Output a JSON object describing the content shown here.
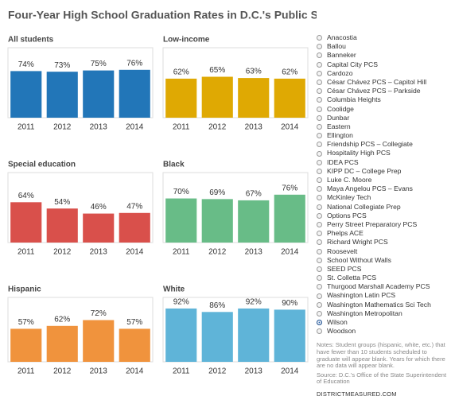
{
  "header": {
    "title": "Four-Year High School Graduation Rates in D.C.'s Public Schools, By School"
  },
  "chart_data": [
    {
      "type": "bar",
      "title": "All students",
      "categories": [
        "2011",
        "2012",
        "2013",
        "2014"
      ],
      "values": [
        74,
        73,
        75,
        76
      ],
      "value_labels": [
        "74%",
        "73%",
        "75%",
        "76%"
      ],
      "color": "#2276b8"
    },
    {
      "type": "bar",
      "title": "Low-income",
      "categories": [
        "2011",
        "2012",
        "2013",
        "2014"
      ],
      "values": [
        62,
        65,
        63,
        62
      ],
      "value_labels": [
        "62%",
        "65%",
        "63%",
        "62%"
      ],
      "color": "#dfa903"
    },
    {
      "type": "bar",
      "title": "Special education",
      "categories": [
        "2011",
        "2012",
        "2013",
        "2014"
      ],
      "values": [
        64,
        54,
        46,
        47
      ],
      "value_labels": [
        "64%",
        "54%",
        "46%",
        "47%"
      ],
      "color": "#d9504b"
    },
    {
      "type": "bar",
      "title": "Black",
      "categories": [
        "2011",
        "2012",
        "2013",
        "2014"
      ],
      "values": [
        70,
        69,
        67,
        76
      ],
      "value_labels": [
        "70%",
        "69%",
        "67%",
        "76%"
      ],
      "color": "#68bc87"
    },
    {
      "type": "bar",
      "title": "Hispanic",
      "categories": [
        "2011",
        "2012",
        "2013",
        "2014"
      ],
      "values": [
        57,
        62,
        72,
        57
      ],
      "value_labels": [
        "57%",
        "62%",
        "72%",
        "57%"
      ],
      "color": "#f0933d"
    },
    {
      "type": "bar",
      "title": "White",
      "categories": [
        "2011",
        "2012",
        "2013",
        "2014"
      ],
      "values": [
        92,
        86,
        92,
        90
      ],
      "value_labels": [
        "92%",
        "86%",
        "92%",
        "90%"
      ],
      "color": "#5fb4d8"
    }
  ],
  "school_selector": {
    "options": [
      "Anacostia",
      "Ballou",
      "Banneker",
      "Capital City PCS",
      "Cardozo",
      "César Chávez PCS – Capitol Hill",
      "César Chávez PCS – Parkside",
      "Columbia Heights",
      "Coolidge",
      "Dunbar",
      "Eastern",
      "Ellington",
      "Friendship PCS – Collegiate",
      "Hospitality High PCS",
      "IDEA PCS",
      "KIPP DC – College Prep",
      "Luke C. Moore",
      "Maya Angelou PCS – Evans",
      "McKinley Tech",
      "National Collegiate Prep",
      "Options PCS",
      "Perry Street Preparatory PCS",
      "Phelps ACE",
      "Richard Wright PCS",
      "Roosevelt",
      "School Without Walls",
      "SEED PCS",
      "St. Colletta PCS",
      "Thurgood Marshall Academy PCS",
      "Washington Latin PCS",
      "Washington Mathematics Sci Tech",
      "Washington Metropolitan",
      "Wilson",
      "Woodson"
    ],
    "selected": 32
  },
  "notes": "Notes: Student groups (hispanic, white, etc.) that have fewer than 10 students scheduled to graduate will appear blank. Years for which there are no data will appear blank.",
  "source": "Source: D.C.'s Office of the State Superintendent of Education",
  "footer": "DISTRICTMEASURED.COM"
}
